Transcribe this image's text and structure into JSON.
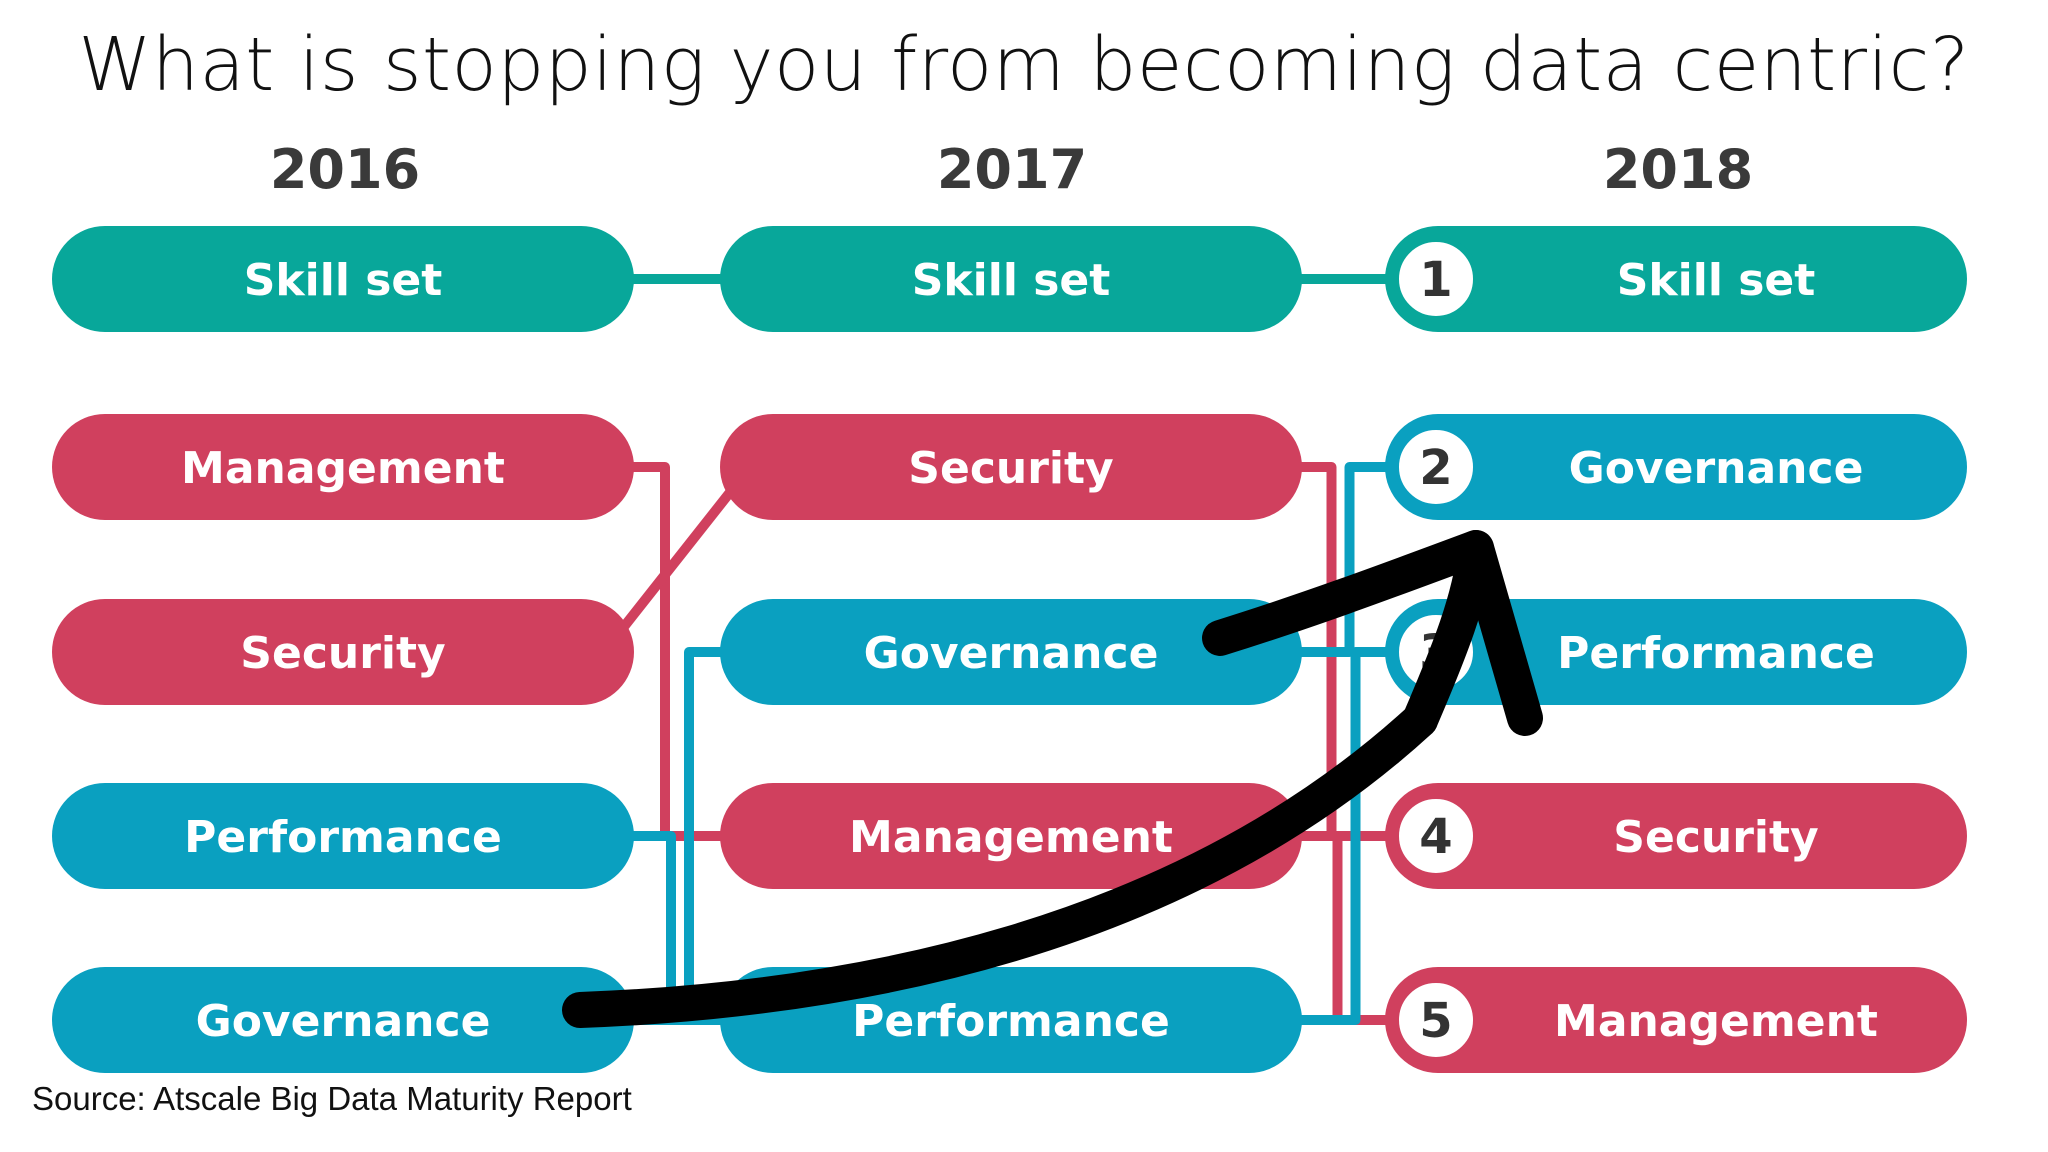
{
  "title": "What is stopping you from becoming data centric?",
  "years": [
    "2016",
    "2017",
    "2018"
  ],
  "columns": [
    {
      "year": "2016",
      "items": [
        {
          "label": "Skill set",
          "category": "skill"
        },
        {
          "label": "Management",
          "category": "risk"
        },
        {
          "label": "Security",
          "category": "risk"
        },
        {
          "label": "Performance",
          "category": "tech"
        },
        {
          "label": "Governance",
          "category": "tech"
        }
      ]
    },
    {
      "year": "2017",
      "items": [
        {
          "label": "Skill set",
          "category": "skill"
        },
        {
          "label": "Security",
          "category": "risk"
        },
        {
          "label": "Governance",
          "category": "tech"
        },
        {
          "label": "Management",
          "category": "risk"
        },
        {
          "label": "Performance",
          "category": "tech"
        }
      ]
    },
    {
      "year": "2018",
      "items": [
        {
          "label": "Skill set",
          "category": "skill",
          "rank": "1"
        },
        {
          "label": "Governance",
          "category": "tech",
          "rank": "2"
        },
        {
          "label": "Performance",
          "category": "tech",
          "rank": "3"
        },
        {
          "label": "Security",
          "category": "risk",
          "rank": "4"
        },
        {
          "label": "Management",
          "category": "risk",
          "rank": "5"
        }
      ]
    }
  ],
  "colors": {
    "skill": "#08a79a",
    "risk": "#d0405e",
    "tech": "#0aa0c0",
    "arrow": "#000000",
    "rank_circle_fill": "#ffffff",
    "rank_text": "#333333"
  },
  "source": "Source: Atscale Big Data Maturity Report"
}
